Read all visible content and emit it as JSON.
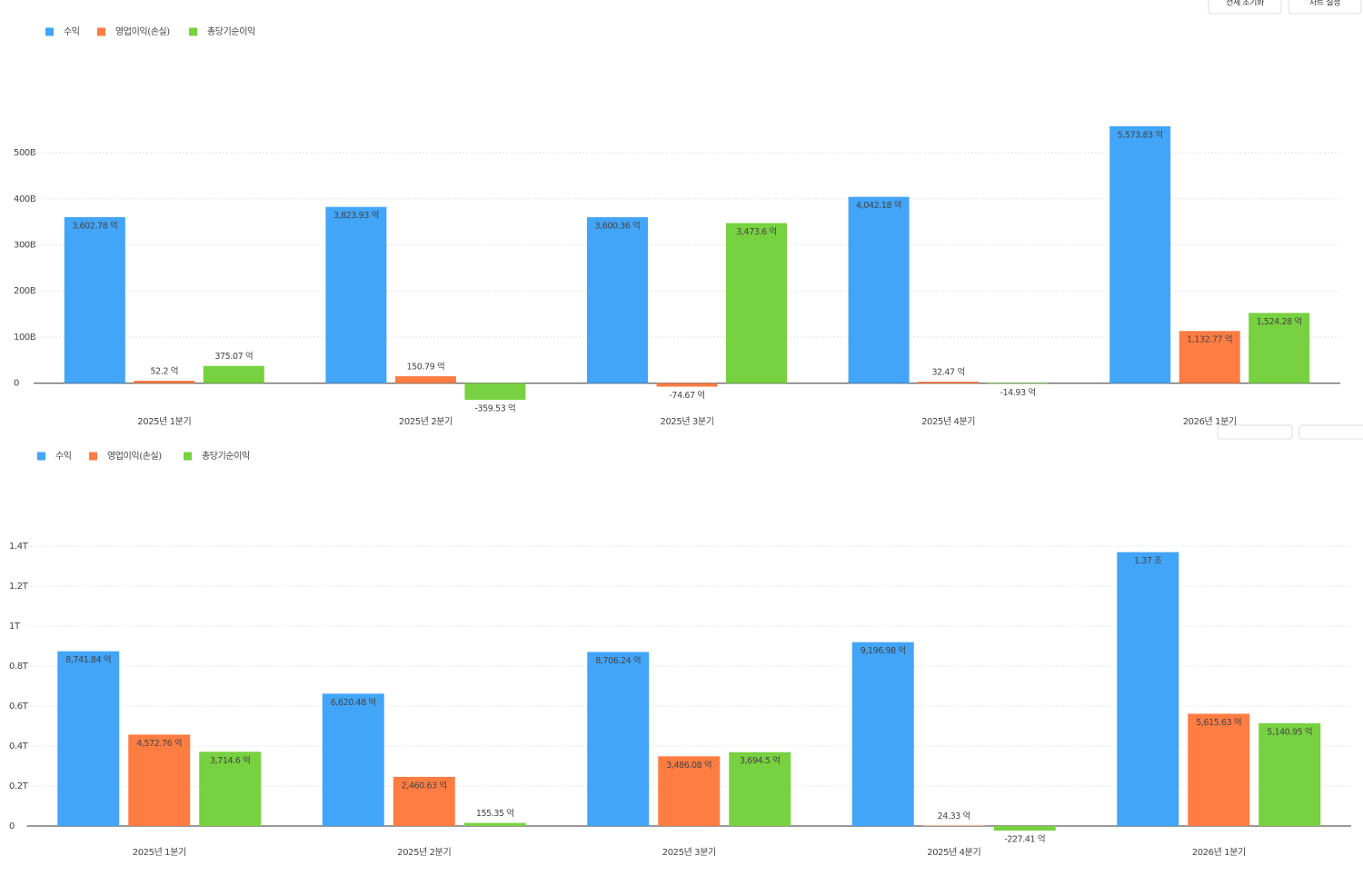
{
  "buttons": [
    "전체 초기화",
    "차트 설정"
  ],
  "chart_data": [
    {
      "type": "bar",
      "categories": [
        "2025년 1분기",
        "2025년 2분기",
        "2025년 3분기",
        "2025년 4분기",
        "2026년 1분기"
      ],
      "series": [
        {
          "name": "수익",
          "color": "#42a5f8",
          "values": [
            360.278,
            382.393,
            360.036,
            404.218,
            557.383
          ],
          "value_labels": [
            "3,602.78 억",
            "3,823.93 억",
            "3,600.36 억",
            "4,042.18 억",
            "5,573.83 억"
          ]
        },
        {
          "name": "영업이익(손실)",
          "color": "#ff7c43",
          "values": [
            5.22,
            15.079,
            -7.467,
            3.247,
            113.277
          ],
          "value_labels": [
            "52.2 억",
            "150.79 억",
            "-74.67 억",
            "32.47 억",
            "1,132.77 억"
          ]
        },
        {
          "name": "총당기순이익",
          "color": "#77d140",
          "values": [
            37.507,
            -35.953,
            347.36,
            -1.493,
            152.428
          ],
          "value_labels": [
            "375.07 억",
            "-359.53 억",
            "3,473.6 억",
            "-14.93 억",
            "1,524.28 억"
          ]
        }
      ],
      "ylim": [
        -40,
        575
      ],
      "yticks": [
        0,
        {
          "value": 100,
          "label": "100B"
        },
        {
          "value": 200,
          "label": "200B"
        },
        {
          "value": 300,
          "label": "300B"
        },
        {
          "value": 400,
          "label": "400B"
        },
        {
          "value": 500,
          "label": "500B"
        }
      ],
      "grid": true,
      "legend": "top-left"
    },
    {
      "type": "bar",
      "categories": [
        "2025년 1분기",
        "2025년 2분기",
        "2025년 3분기",
        "2025년 4분기",
        "2026년 1분기"
      ],
      "series": [
        {
          "name": "수익",
          "color": "#42a5f8",
          "values": [
            0.874184,
            0.662048,
            0.870624,
            0.919698,
            1.37
          ],
          "value_labels": [
            "8,741.84 억",
            "6,620.48 억",
            "8,706.24 억",
            "9,196.98 억",
            "1.37 조"
          ]
        },
        {
          "name": "영업이익(손실)",
          "color": "#ff7c43",
          "values": [
            0.457276,
            0.246063,
            0.348608,
            0.002433,
            0.561563
          ],
          "value_labels": [
            "4,572.76 억",
            "2,460.63 억",
            "3,486.08 억",
            "24.33 억",
            "5,615.63 억"
          ]
        },
        {
          "name": "총당기순이익",
          "color": "#77d140",
          "values": [
            0.37146,
            0.015535,
            0.36945,
            -0.022741,
            0.514095
          ],
          "value_labels": [
            "3,714.6 억",
            "155.35 억",
            "3,694.5 억",
            "-227.41 억",
            "5,140.95 억"
          ]
        }
      ],
      "ylim": [
        -0.05,
        1.4
      ],
      "yticks": [
        0,
        {
          "value": 0.2,
          "label": "0.2T"
        },
        {
          "value": 0.4,
          "label": "0.4T"
        },
        {
          "value": 0.6,
          "label": "0.6T"
        },
        {
          "value": 0.8,
          "label": "0.8T"
        },
        {
          "value": 1,
          "label": "1T"
        },
        {
          "value": 1.2,
          "label": "1.2T"
        },
        {
          "value": 1.4,
          "label": "1.4T"
        }
      ],
      "grid": true,
      "legend": "top-left"
    }
  ]
}
